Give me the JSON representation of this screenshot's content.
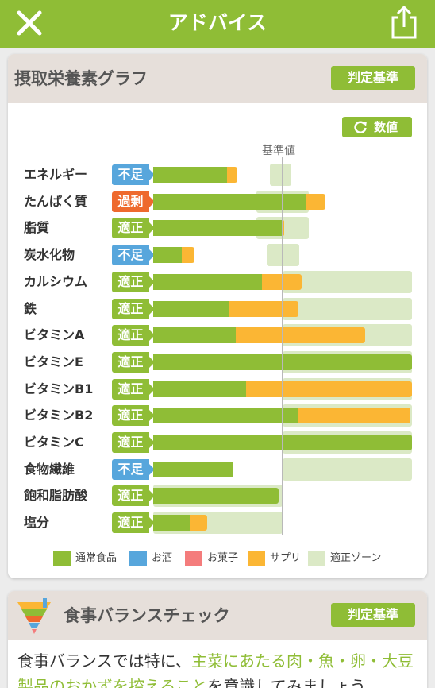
{
  "header": {
    "title": "アドバイス"
  },
  "chart_card": {
    "title": "摂取栄養素グラフ",
    "criteria_label": "判定基準",
    "values_label": "数値",
    "standard_label": "基準値"
  },
  "colors": {
    "brand": "#8fbd36",
    "ok": "#8fbd36",
    "low": "#57a6dc",
    "high": "#ee6a2e",
    "confectionery": "#f47c7c",
    "supplement": "#fbb634",
    "zone": "#dbe9c6"
  },
  "chart_data": {
    "type": "bar",
    "orientation": "horizontal",
    "stacked": true,
    "scale_note": "values as ratio of standard (1.0 = 基準値)",
    "categories": [
      "エネルギー",
      "たんぱく質",
      "脂質",
      "炭水化物",
      "カルシウム",
      "鉄",
      "ビタミンA",
      "ビタミンE",
      "ビタミンB1",
      "ビタミンB2",
      "ビタミンC",
      "食物繊維",
      "飽和脂肪酸",
      "塩分"
    ],
    "statuses": [
      "不足",
      "過剰",
      "適正",
      "不足",
      "適正",
      "適正",
      "適正",
      "適正",
      "適正",
      "適正",
      "適正",
      "不足",
      "適正",
      "適正"
    ],
    "series": [
      {
        "name": "通常食品",
        "values": [
          0.57,
          1.18,
          1.0,
          0.22,
          0.84,
          0.59,
          0.64,
          2.0,
          0.72,
          1.12,
          2.0,
          0.62,
          0.97,
          0.28
        ]
      },
      {
        "name": "お酒",
        "values": [
          0,
          0,
          0,
          0,
          0,
          0,
          0,
          0,
          0,
          0,
          0,
          0,
          0,
          0
        ]
      },
      {
        "name": "お菓子",
        "values": [
          0,
          0,
          0,
          0,
          0,
          0,
          0,
          0,
          0,
          0,
          0,
          0,
          0,
          0
        ]
      },
      {
        "name": "サプリ",
        "values": [
          0.08,
          0.15,
          0.01,
          0.1,
          0.31,
          0.53,
          1.0,
          0,
          1.28,
          0.87,
          0,
          0,
          0,
          0.14
        ]
      }
    ],
    "zones": [
      [
        0.9,
        1.07
      ],
      [
        0.8,
        1.2
      ],
      [
        0.8,
        1.2
      ],
      [
        0.88,
        1.13
      ],
      [
        1.0,
        2.0
      ],
      [
        1.0,
        2.0
      ],
      [
        1.0,
        2.0
      ],
      [
        1.0,
        2.0
      ],
      [
        1.0,
        2.0
      ],
      [
        1.0,
        2.0
      ],
      [
        1.0,
        2.0
      ],
      [
        1.0,
        2.0
      ],
      [
        0,
        1.0
      ],
      [
        0,
        1.0
      ]
    ],
    "xlim": [
      0,
      2.0
    ],
    "legend": [
      "通常食品",
      "お酒",
      "お菓子",
      "サプリ",
      "適正ゾーン"
    ],
    "legend_position": "bottom"
  },
  "balance_card": {
    "title": "食事バランスチェック",
    "criteria_label": "判定基準",
    "text_before": "食事バランスでは特に、",
    "text_highlight": "主菜にあたる肉・魚・卵・大豆製品のおかずを控えること",
    "text_after": "を意識してみましょう。"
  }
}
